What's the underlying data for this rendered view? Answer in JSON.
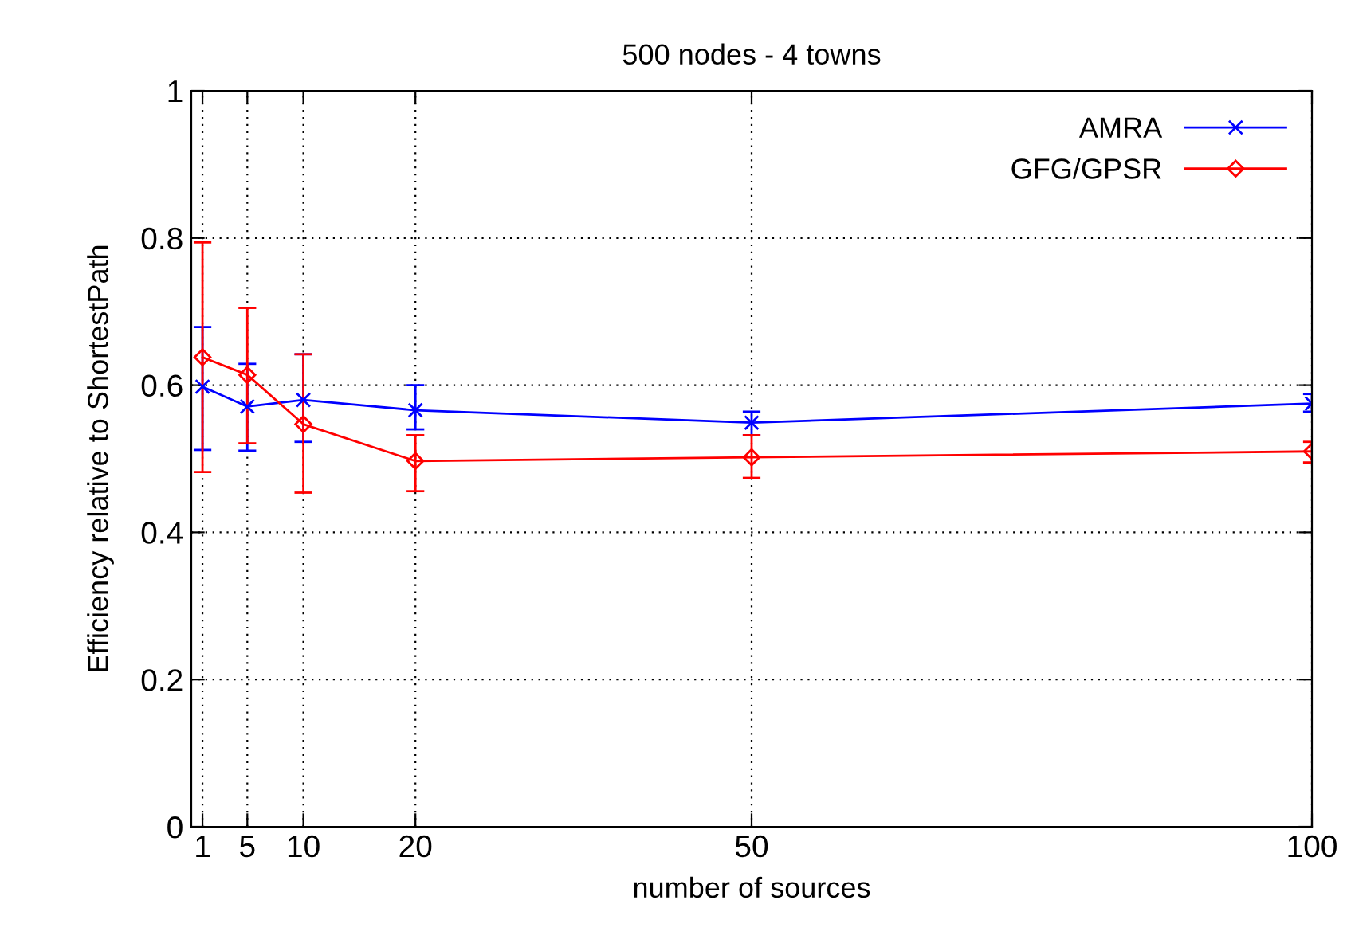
{
  "chart_data": {
    "type": "line",
    "title": "500 nodes - 4 towns",
    "xlabel": "number of sources",
    "ylabel": "Efficiency relative to ShortestPath",
    "x": [
      1,
      5,
      10,
      20,
      50,
      100
    ],
    "series": [
      {
        "name": "AMRA",
        "color": "#0000ff",
        "marker": "cross",
        "values": [
          0.598,
          0.571,
          0.58,
          0.566,
          0.549,
          0.575
        ],
        "errors": [
          [
            0.512,
            0.679
          ],
          [
            0.511,
            0.629
          ],
          [
            0.523,
            0.642
          ],
          [
            0.54,
            0.6
          ],
          [
            0.532,
            0.564
          ],
          [
            0.564,
            0.588
          ]
        ]
      },
      {
        "name": "GFG/GPSR",
        "color": "#ff0000",
        "marker": "diamond",
        "values": [
          0.638,
          0.614,
          0.547,
          0.497,
          0.502,
          0.51
        ],
        "errors": [
          [
            0.482,
            0.794
          ],
          [
            0.521,
            0.705
          ],
          [
            0.454,
            0.642
          ],
          [
            0.456,
            0.532
          ],
          [
            0.474,
            0.532
          ],
          [
            0.495,
            0.523
          ]
        ]
      }
    ],
    "xlim": [
      0,
      100
    ],
    "xticks": [
      1,
      5,
      10,
      20,
      50,
      100
    ],
    "ylim": [
      0,
      1
    ],
    "yticks": [
      0,
      {
        "value": 0.2,
        "label": "0.2"
      },
      {
        "value": 0.4,
        "label": "0.4"
      },
      {
        "value": 0.6,
        "label": "0.6"
      },
      {
        "value": 0.8,
        "label": "0.8"
      },
      1
    ],
    "grid": true,
    "legend": "top right",
    "line_style": "solid"
  }
}
